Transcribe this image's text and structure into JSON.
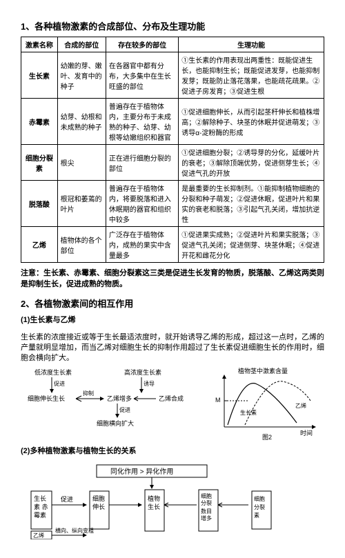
{
  "section1_title": "1、各种植物激素的合成部位、分布及生理功能",
  "table": {
    "headers": [
      "激素名称",
      "合成的部位",
      "存在较多的部位",
      "生理功能"
    ],
    "rows": [
      [
        "生长素",
        "幼嫩的芽、嫩叶、发育中的种子",
        "在各器官中都有分布，大多集中在生长旺盛的部位",
        "①生长素的作用表现出两重性：既能促进生长，也能抑制生长；既能促进发芽，也能抑制发芽；既能防止落花落果，也能疏花疏果。②促进子房发育；③促进生根"
      ],
      [
        "赤霉素",
        "幼芽、幼根和未成熟的种子",
        "普遍存在于植物体内，主要分布于未成熟的种子、幼芽、幼根等幼嫩组织和器官",
        "①促进细胞伸长，从而引起茎秆伸长和植株增高；②解除种子、块茎的休眠并促进萌发；③诱导α-淀粉酶的形成"
      ],
      [
        "细胞分裂素",
        "根尖",
        "正在进行细胞分裂的部位",
        "①促进细胞分裂；②诱导芽的分化，延缓叶片的衰老；③解除顶端优势，促进侧芽生长；④促进气孔的开放"
      ],
      [
        "脱落酸",
        "根冠和萎蔫的叶片",
        "普遍存在于植物体内，将要脱落和进入休眠期的器官和组织中较多",
        "是最重要的生长抑制剂。①能抑制植物细胞的分裂和种子萌发；②促进休眠，促进叶片和果实的衰老和脱落；③引起气孔关闭，增加抗逆性"
      ],
      [
        "乙烯",
        "植物体的各个部位",
        "广泛存在于植物体内，成熟的果实中含量最多",
        "①促进果实成熟；②促进叶片和果实脱落；③促进气孔关闭；促进侧芽、块茎休眠；④促进开花和雌花分化"
      ]
    ]
  },
  "note_text": "注意：生长素、赤霉素、细胞分裂素这三类是促进生长发育的物质，脱落酸、乙烯这两类则是抑制生长，促进成熟的物质。",
  "section2_title": "2、各植物激素间的相互作用",
  "sub1": "(1)生长素与乙烯",
  "para1": "生长素的浓度接近或等于生长最适浓度时，就开始诱导乙烯的形成，超过这一点时，乙烯的产量就明显增加，而当乙烯对细胞生长的抑制作用超过了生长素促进细胞生长的作用时，细胞会横向扩大。",
  "diagram1": {
    "labels": {
      "low": "低浓度生长素",
      "high": "高浓度生长素",
      "promote": "促进",
      "suppress": "抑制",
      "cell_elong": "细胞伸长生长",
      "eth_inc": "乙烯增多",
      "eth_synth": "乙烯合成",
      "induce": "诱导",
      "cell_wide": "细胞横向扩大"
    }
  },
  "chart": {
    "title": "植物茎中激素含量",
    "y_label": "M",
    "x_label": "时间",
    "series": [
      "生长素",
      "乙烯"
    ],
    "caption": "图2"
  },
  "sub2": "(2)多种植物激素与植物生长的关系",
  "diagram2": {
    "top": "同化作用 > 异化作用",
    "left_group": "生长素 赤霉素",
    "left_arrow": "促进",
    "left_box": "细胞伸长",
    "mid_top": "植物生长",
    "mid_sub": "横向、纵向变粗",
    "right_box": "细胞分裂 数目增多",
    "right_group": "细胞分裂素",
    "eth": "乙烯"
  }
}
